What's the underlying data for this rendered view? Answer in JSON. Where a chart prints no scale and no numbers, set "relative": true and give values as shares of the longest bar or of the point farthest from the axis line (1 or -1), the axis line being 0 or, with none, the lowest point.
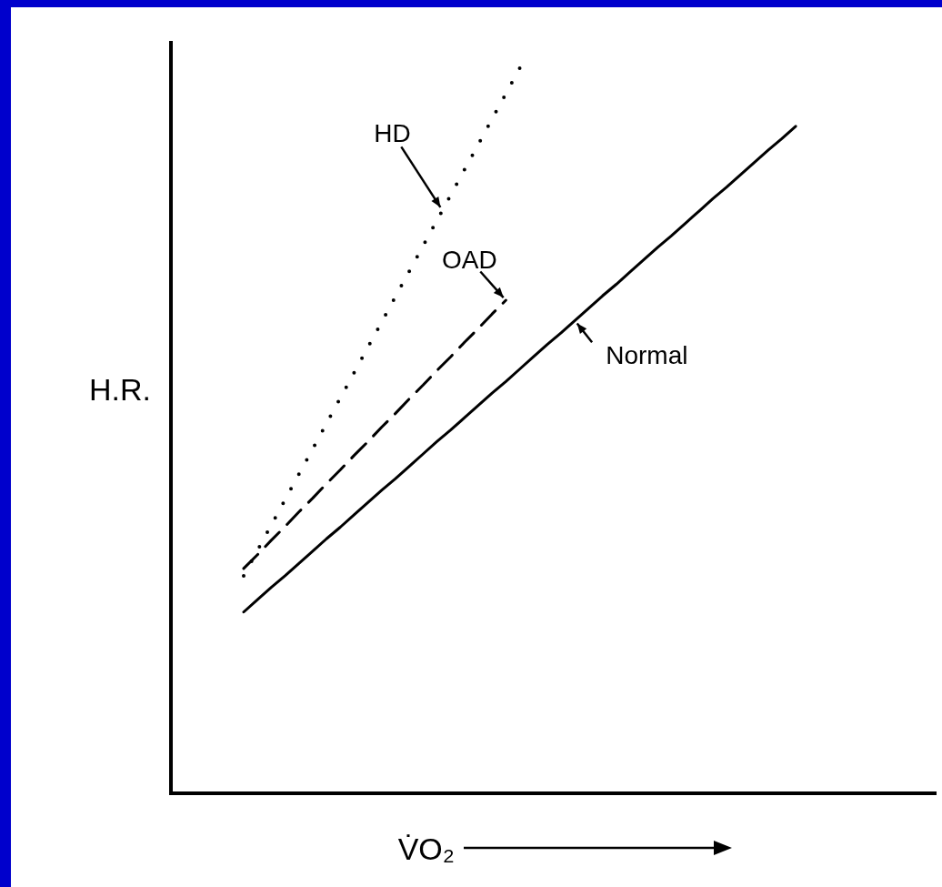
{
  "chart_data": {
    "type": "line",
    "relative": true,
    "xlabel": "V̇O₂",
    "ylabel": "H.R.",
    "categories": [
      null,
      null,
      null,
      null,
      null,
      null,
      null,
      null,
      null,
      null,
      null,
      null,
      null,
      null,
      null,
      null,
      null,
      null,
      null,
      null,
      null,
      null,
      null,
      null,
      null,
      null,
      null,
      null,
      null,
      null,
      null,
      null,
      null,
      null,
      null,
      null,
      null,
      null,
      null,
      null,
      null
    ],
    "series": [
      {
        "name": "Normal",
        "color": "#000000",
        "line_style": "solid",
        "values": [
          0.25,
          0.267,
          0.284,
          0.3,
          0.317,
          0.334,
          0.351,
          0.367,
          0.384,
          0.401,
          0.418,
          0.434,
          0.451,
          0.468,
          0.485,
          0.501,
          0.518,
          0.535,
          0.552,
          0.568,
          0.585,
          0.602,
          0.619,
          0.635,
          0.652,
          0.669,
          0.686,
          0.702,
          0.719,
          0.736,
          0.753,
          0.769,
          0.786,
          0.803,
          0.82,
          0.836,
          0.853,
          0.87,
          0.887,
          0.903,
          0.92
        ]
      },
      {
        "name": "OAD",
        "color": "#000000",
        "line_style": "dashed",
        "values": [
          0.31,
          0.329,
          0.349,
          0.368,
          0.388,
          0.407,
          0.427,
          0.446,
          0.466,
          0.485,
          0.505,
          0.524,
          0.544,
          0.563,
          0.583,
          0.602,
          0.622,
          0.641,
          0.661,
          0.68,
          null,
          null,
          null,
          null,
          null,
          null,
          null,
          null,
          null,
          null,
          null,
          null,
          null,
          null,
          null,
          null,
          null,
          null,
          null,
          null,
          null
        ]
      },
      {
        "name": "HD",
        "color": "#000000",
        "line_style": "dotted",
        "values": [
          0.3,
          0.335,
          0.37,
          0.405,
          0.44,
          0.475,
          0.51,
          0.545,
          0.58,
          0.615,
          0.65,
          0.685,
          0.72,
          0.755,
          0.79,
          0.825,
          0.86,
          0.895,
          0.93,
          0.965,
          1.0,
          null,
          null,
          null,
          null,
          null,
          null,
          null,
          null,
          null,
          null,
          null,
          null,
          null,
          null,
          null,
          null,
          null,
          null,
          null,
          null
        ]
      }
    ]
  }
}
